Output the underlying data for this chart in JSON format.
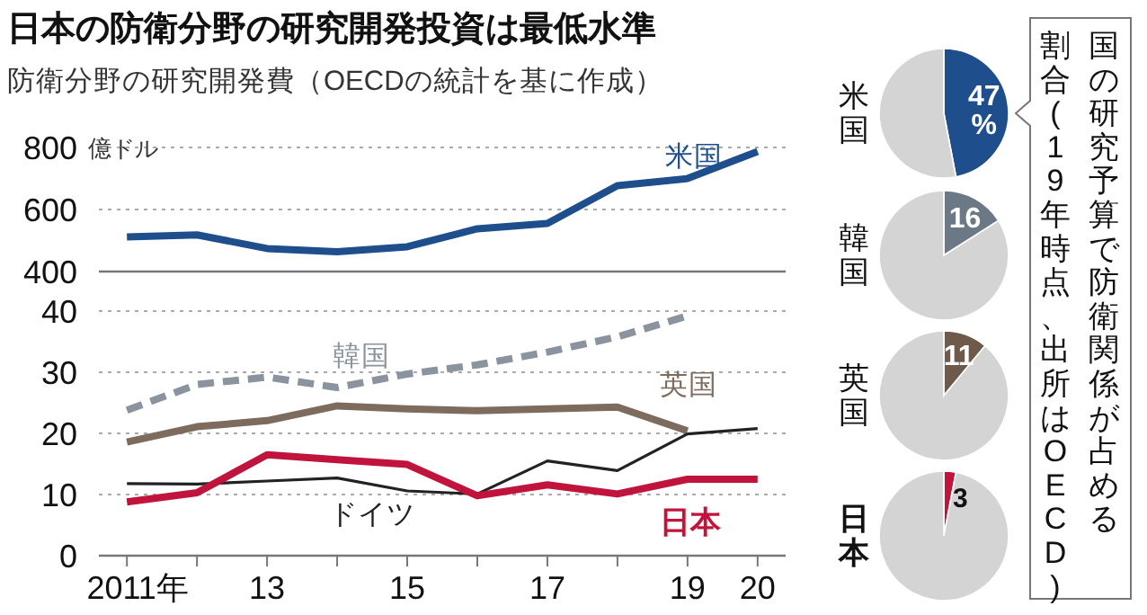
{
  "chart_data": [
    {
      "type": "line",
      "title": "日本の防衛分野の研究開発投資は最低水準",
      "subtitle": "防衛分野の研究開発費（OECDの統計を基に作成）",
      "ylabel": "億ドル",
      "x": [
        2011,
        2012,
        2013,
        2014,
        2015,
        2016,
        2017,
        2018,
        2019,
        2020
      ],
      "xlim": [
        2010.6,
        2020.4
      ],
      "tick_labels": "y",
      "ylim": [
        400,
        800
      ],
      "yticks": [
        400,
        600,
        800
      ],
      "grid": "y",
      "series": [
        {
          "name": "米国",
          "color": "#1f4e8c",
          "values": [
            512,
            518,
            474,
            464,
            480,
            538,
            555,
            677,
            700,
            787
          ]
        }
      ]
    },
    {
      "type": "line",
      "x": [
        2011,
        2012,
        2013,
        2014,
        2015,
        2016,
        2017,
        2018,
        2019,
        2020
      ],
      "xlim": [
        2010.6,
        2020.4
      ],
      "xticks": [
        {
          "value": 2011,
          "label": "2011年"
        },
        {
          "value": 2012,
          "label": null
        },
        {
          "value": 2013,
          "label": "13"
        },
        {
          "value": 2014,
          "label": null
        },
        {
          "value": 2015,
          "label": "15"
        },
        {
          "value": 2016,
          "label": null
        },
        {
          "value": 2017,
          "label": "17"
        },
        {
          "value": 2018,
          "label": null
        },
        {
          "value": 2019,
          "label": "19"
        },
        {
          "value": 2020,
          "label": "20"
        }
      ],
      "ylim": [
        0,
        40
      ],
      "yticks": [
        0,
        10,
        20,
        30,
        40
      ],
      "grid": "y",
      "series": [
        {
          "name": "韓国",
          "color": "#8a939e",
          "line_style": "dashed",
          "values": [
            23.8,
            28,
            29.2,
            27.5,
            29.7,
            31.2,
            33.3,
            35.8,
            39.2,
            null
          ]
        },
        {
          "name": "英国",
          "color": "#7d6b5d",
          "values": [
            18.6,
            21.1,
            22.1,
            24.5,
            24,
            23.7,
            24,
            24.3,
            20.4,
            null
          ]
        },
        {
          "name": "ドイツ",
          "color": "#222222",
          "values": [
            11.8,
            11.7,
            12.2,
            12.7,
            10.6,
            10.1,
            15.5,
            13.9,
            19.9,
            20.8
          ]
        },
        {
          "name": "日本",
          "color": "#c0143c",
          "values": [
            8.8,
            10.3,
            16.5,
            15.7,
            14.9,
            9.8,
            11.6,
            10.1,
            12.5,
            12.5
          ]
        }
      ]
    },
    {
      "type": "pie",
      "title": "米国",
      "categories": [
        null,
        null
      ],
      "values": [
        47,
        53
      ],
      "colors": [
        "#1f4e8c",
        "#d4d4d4"
      ],
      "value_labels": [
        "47%",
        null
      ],
      "annotations": [
        "国の研究予算で防衛関係が占める",
        "割合(19年時点、出所はOECD)"
      ]
    },
    {
      "type": "pie",
      "title": "韓国",
      "categories": [
        null,
        null
      ],
      "values": [
        16,
        84
      ],
      "colors": [
        "#6b7886",
        "#d4d4d4"
      ],
      "value_labels": [
        "16",
        null
      ]
    },
    {
      "type": "pie",
      "title": "英国",
      "categories": [
        null,
        null
      ],
      "values": [
        11,
        89
      ],
      "colors": [
        "#6e5a4a",
        "#d4d4d4"
      ],
      "value_labels": [
        "11",
        null
      ]
    },
    {
      "type": "pie",
      "title": "日本",
      "categories": [
        null,
        null
      ],
      "values": [
        3,
        97
      ],
      "colors": [
        "#c0143c",
        "#d4d4d4"
      ],
      "value_labels": [
        "3",
        null
      ]
    }
  ]
}
